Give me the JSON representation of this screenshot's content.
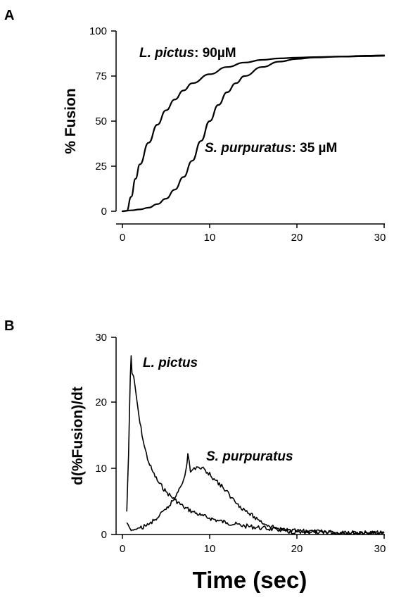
{
  "chart_data": [
    {
      "panel": "A",
      "type": "line",
      "ylabel": "% Fusion",
      "xlabel": "",
      "xlim": [
        0,
        30
      ],
      "ylim": [
        0,
        100
      ],
      "xticks": [
        0,
        10,
        20,
        30
      ],
      "yticks": [
        0,
        25,
        50,
        75,
        100
      ],
      "series": [
        {
          "name": "L. pictus",
          "annotation": ": 90µM",
          "x": [
            0,
            0.5,
            1,
            1.5,
            2,
            3,
            4,
            5,
            6,
            7,
            8,
            10,
            12,
            14,
            16,
            18,
            20,
            22,
            25,
            28,
            30
          ],
          "y": [
            0,
            0.3,
            8,
            18,
            26,
            38,
            48,
            56,
            62,
            67,
            71,
            76,
            80,
            82.5,
            84,
            84.8,
            85.2,
            85.5,
            85.8,
            86,
            86.2
          ]
        },
        {
          "name": "S. purpuratus",
          "annotation": ": 35 µM",
          "x": [
            0,
            1,
            2,
            3,
            4,
            5,
            6,
            7,
            8,
            9,
            10,
            11,
            12,
            13,
            14,
            16,
            18,
            20,
            22,
            25,
            28,
            30
          ],
          "y": [
            0,
            0.5,
            1,
            2,
            4,
            7,
            12,
            19,
            28,
            39,
            50,
            59,
            66,
            71,
            75,
            80,
            83,
            84.5,
            85.3,
            85.8,
            86.3,
            86.5
          ]
        }
      ]
    },
    {
      "panel": "B",
      "type": "line",
      "ylabel": "d(%Fusion)/dt",
      "xlabel": "Time (sec)",
      "xlim": [
        0,
        30
      ],
      "ylim": [
        0,
        30
      ],
      "xticks": [
        0,
        10,
        20,
        30
      ],
      "yticks": [
        0,
        10,
        20,
        30
      ],
      "series": [
        {
          "name": "L. pictus",
          "x": [
            0.5,
            0.7,
            0.9,
            1.0,
            1.1,
            1.3,
            1.6,
            2,
            2.5,
            3,
            3.5,
            4,
            5,
            6,
            7,
            8,
            9,
            10,
            11,
            12,
            14,
            16,
            18,
            20,
            25,
            30
          ],
          "y": [
            3.5,
            12,
            24,
            27.2,
            24.5,
            24,
            21,
            17,
            13.5,
            11,
            9.5,
            8.2,
            6.5,
            5.3,
            4.2,
            3.5,
            2.9,
            2.5,
            2.1,
            1.8,
            1.3,
            1.0,
            0.7,
            0.5,
            0.3,
            0.2
          ]
        },
        {
          "name": "S. purpuratus",
          "x": [
            0.5,
            1,
            1.5,
            2,
            3,
            4,
            5,
            6,
            6.5,
            7,
            7.3,
            7.5,
            7.8,
            8.5,
            9.5,
            10.5,
            11.5,
            12.5,
            13.5,
            14.5,
            15.5,
            16.5,
            17.5,
            18.5,
            20,
            22,
            25,
            28,
            30
          ],
          "y": [
            1.8,
            0.6,
            0.8,
            1.0,
            1.5,
            2.5,
            3.8,
            5.5,
            7.0,
            8.3,
            10,
            12.3,
            9.5,
            10.3,
            9.8,
            8.5,
            7.2,
            5.6,
            4.3,
            3.2,
            2.3,
            1.5,
            1.0,
            0.6,
            0.4,
            0.3,
            0.2,
            0.2,
            0.2
          ]
        }
      ]
    }
  ],
  "panels": {
    "a": {
      "letter": "A",
      "y_tick_labels": [
        "0",
        "25",
        "50",
        "75",
        "100"
      ],
      "x_tick_labels": [
        "0",
        "10",
        "20",
        "30"
      ],
      "ylabel": "% Fusion",
      "label1_species": "L. pictus",
      "label1_conc": ":  90µM",
      "label2_species": "S. purpuratus",
      "label2_conc": ":  35 µM"
    },
    "b": {
      "letter": "B",
      "y_tick_labels": [
        "0",
        "10",
        "20",
        "30"
      ],
      "x_tick_labels": [
        "0",
        "10",
        "20",
        "30"
      ],
      "ylabel": "d(%Fusion)/dt",
      "xlabel": "Time (sec)",
      "label1_species": "L. pictus",
      "label2_species": "S. purpuratus"
    }
  }
}
